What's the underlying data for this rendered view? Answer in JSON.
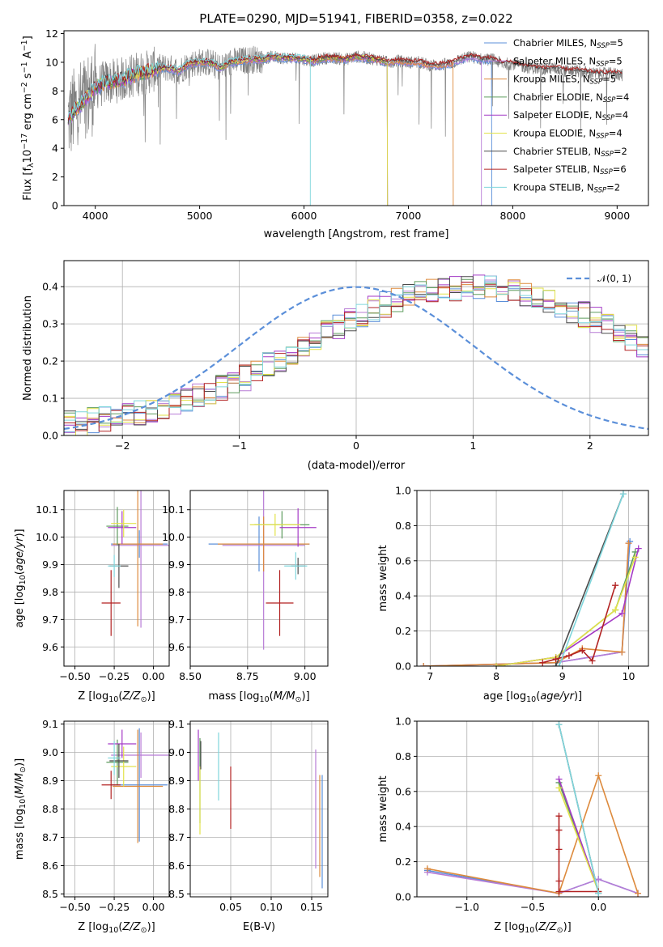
{
  "figure": {
    "title": "PLATE=0290, MJD=51941, FIBERID=0358, z=0.022"
  },
  "models": [
    {
      "name": "Chabrier MILES, N",
      "sub": "SSP",
      "eq": "=5",
      "color": "#5b8fd9"
    },
    {
      "name": "Salpeter MILES, N",
      "sub": "SSP",
      "eq": "=5",
      "color": "#b77cd6"
    },
    {
      "name": "Kroupa MILES, N",
      "sub": "SSP",
      "eq": "=5",
      "color": "#dd8a3c"
    },
    {
      "name": "Chabrier ELODIE, N",
      "sub": "SSP",
      "eq": "=4",
      "color": "#5e9c5e"
    },
    {
      "name": "Salpeter ELODIE, N",
      "sub": "SSP",
      "eq": "=4",
      "color": "#a43ac6"
    },
    {
      "name": "Kroupa ELODIE, N",
      "sub": "SSP",
      "eq": "=4",
      "color": "#e2e24a"
    },
    {
      "name": "Chabrier STELIB, N",
      "sub": "SSP",
      "eq": "=2",
      "color": "#4a4a4a"
    },
    {
      "name": "Salpeter STELIB, N",
      "sub": "SSP",
      "eq": "=6",
      "color": "#b22222"
    },
    {
      "name": "Kroupa STELIB, N",
      "sub": "SSP",
      "eq": "=2",
      "color": "#7fd6dc"
    }
  ],
  "chart_data": [
    {
      "type": "line",
      "id": "spectrum",
      "title": "PLATE=0290, MJD=51941, FIBERID=0358, z=0.022",
      "xlabel": "wavelength [Angstrom, rest frame]",
      "ylabel_parts": [
        "Flux [f",
        "λ",
        "10",
        "−17",
        " erg cm",
        "−2",
        " s",
        "−1",
        " A",
        "−1",
        "]"
      ],
      "xlim": [
        3700,
        9300
      ],
      "ylim": [
        0,
        12.2
      ],
      "xticks": [
        4000,
        5000,
        6000,
        7000,
        8000,
        9000
      ],
      "yticks": [
        0,
        2,
        4,
        6,
        8,
        10,
        12
      ],
      "data_color": "#808080",
      "continuum": [
        [
          3740,
          6.0
        ],
        [
          3800,
          6.6
        ],
        [
          3850,
          7.0
        ],
        [
          3900,
          7.4
        ],
        [
          3950,
          7.8
        ],
        [
          4000,
          8.2
        ],
        [
          4100,
          8.6
        ],
        [
          4200,
          8.7
        ],
        [
          4300,
          8.9
        ],
        [
          4400,
          9.2
        ],
        [
          4500,
          9.3
        ],
        [
          4600,
          9.6
        ],
        [
          4700,
          9.6
        ],
        [
          4800,
          9.4
        ],
        [
          4900,
          9.9
        ],
        [
          5000,
          10.0
        ],
        [
          5100,
          10.0
        ],
        [
          5200,
          9.6
        ],
        [
          5300,
          10.0
        ],
        [
          5400,
          10.1
        ],
        [
          5500,
          10.2
        ],
        [
          5600,
          10.2
        ],
        [
          5700,
          10.4
        ],
        [
          5800,
          10.3
        ],
        [
          5900,
          10.3
        ],
        [
          6000,
          10.2
        ],
        [
          6100,
          10.1
        ],
        [
          6200,
          10.3
        ],
        [
          6300,
          10.3
        ],
        [
          6400,
          10.2
        ],
        [
          6500,
          10.4
        ],
        [
          6600,
          10.3
        ],
        [
          6700,
          10.2
        ],
        [
          6800,
          10.0
        ],
        [
          6900,
          10.1
        ],
        [
          7000,
          10.0
        ],
        [
          7100,
          10.0
        ],
        [
          7200,
          9.8
        ],
        [
          7300,
          9.8
        ],
        [
          7400,
          9.9
        ],
        [
          7500,
          10.2
        ],
        [
          7600,
          10.4
        ],
        [
          7700,
          10.2
        ],
        [
          7800,
          10.2
        ],
        [
          7900,
          9.9
        ],
        [
          8000,
          9.9
        ],
        [
          8100,
          9.7
        ],
        [
          8200,
          9.6
        ],
        [
          8300,
          9.5
        ],
        [
          8400,
          9.6
        ],
        [
          8500,
          9.4
        ],
        [
          8600,
          9.4
        ],
        [
          8700,
          9.3
        ],
        [
          8800,
          9.2
        ],
        [
          8900,
          9.2
        ],
        [
          9000,
          9.2
        ],
        [
          9050,
          9.1
        ]
      ],
      "model_end_x": [
        7800,
        7700,
        7430,
        6800,
        6800,
        6800,
        9050,
        9050,
        6060
      ],
      "legend": "upper right"
    },
    {
      "type": "step",
      "id": "residuals",
      "xlabel": "(data-model)/error",
      "ylabel": "Normed distribution",
      "xlim": [
        -2.5,
        2.5
      ],
      "ylim": [
        0,
        0.47
      ],
      "xticks": [
        -2,
        -1,
        0,
        1,
        2
      ],
      "yticks": [
        0.0,
        0.1,
        0.2,
        0.3,
        0.4
      ],
      "bin_width": 0.1,
      "hist": [
        0.035,
        0.03,
        0.04,
        0.045,
        0.05,
        0.055,
        0.062,
        0.07,
        0.078,
        0.088,
        0.095,
        0.105,
        0.118,
        0.128,
        0.142,
        0.155,
        0.172,
        0.188,
        0.205,
        0.222,
        0.24,
        0.258,
        0.275,
        0.29,
        0.31,
        0.325,
        0.34,
        0.352,
        0.362,
        0.372,
        0.38,
        0.386,
        0.392,
        0.395,
        0.396,
        0.398,
        0.395,
        0.392,
        0.388,
        0.38,
        0.372,
        0.362,
        0.35,
        0.338,
        0.325,
        0.31,
        0.295,
        0.278,
        0.262,
        0.245
      ],
      "gauss_label": "𝒩(0, 1)",
      "gauss_color": "#5b8fd9",
      "legend": "upper right"
    },
    {
      "type": "errorbar",
      "id": "age-vs-Z",
      "xlabel": "Z [log10(Z/Z⊙)]",
      "ylabel": "age  [log10(age/yr)]",
      "xlim": [
        -0.57,
        0.1
      ],
      "ylim": [
        9.53,
        10.17
      ],
      "xticks": [
        -0.5,
        -0.25,
        0.0
      ],
      "yticks": [
        9.6,
        9.7,
        9.8,
        9.9,
        10.0,
        10.1
      ],
      "points": [
        {
          "m": 0,
          "x": -0.09,
          "y": 9.975,
          "xe": 0.18,
          "ye": 0.05
        },
        {
          "m": 1,
          "x": -0.08,
          "y": 9.97,
          "xe": 0.19,
          "ye": 0.3
        },
        {
          "m": 2,
          "x": -0.1,
          "y": 9.975,
          "xe": 0.16,
          "ye": 0.3
        },
        {
          "m": 3,
          "x": -0.23,
          "y": 10.04,
          "xe": 0.07,
          "ye": 0.07
        },
        {
          "m": 4,
          "x": -0.2,
          "y": 10.035,
          "xe": 0.09,
          "ye": 0.06
        },
        {
          "m": 5,
          "x": -0.19,
          "y": 10.05,
          "xe": 0.08,
          "ye": 0.05
        },
        {
          "m": 6,
          "x": -0.22,
          "y": 9.895,
          "xe": 0.06,
          "ye": 0.08
        },
        {
          "m": 7,
          "x": -0.27,
          "y": 9.76,
          "xe": 0.06,
          "ye": 0.12
        },
        {
          "m": 8,
          "x": -0.25,
          "y": 9.895,
          "xe": 0.04,
          "ye": 0.04
        }
      ]
    },
    {
      "type": "errorbar",
      "id": "age-vs-mass",
      "xlabel": "mass [log10(M/M⊙)]",
      "xlim": [
        8.5,
        9.1
      ],
      "ylim": [
        9.53,
        10.17
      ],
      "xticks": [
        8.5,
        8.75,
        9.0
      ],
      "yticks": [
        9.6,
        9.7,
        9.8,
        9.9,
        10.0,
        10.1
      ],
      "points": [
        {
          "m": 0,
          "x": 8.8,
          "y": 9.975,
          "xe": 0.22,
          "ye": 0.1
        },
        {
          "m": 1,
          "x": 8.82,
          "y": 9.97,
          "xe": 0.18,
          "ye": 0.38
        },
        {
          "m": 2,
          "x": 8.82,
          "y": 9.975,
          "xe": 0.2,
          "ye": 0.1
        },
        {
          "m": 3,
          "x": 8.9,
          "y": 10.045,
          "xe": 0.12,
          "ye": 0.05
        },
        {
          "m": 4,
          "x": 8.97,
          "y": 10.035,
          "xe": 0.08,
          "ye": 0.07
        },
        {
          "m": 5,
          "x": 8.87,
          "y": 10.045,
          "xe": 0.11,
          "ye": 0.04
        },
        {
          "m": 6,
          "x": 8.97,
          "y": 9.895,
          "xe": 0.03,
          "ye": 0.03
        },
        {
          "m": 7,
          "x": 8.89,
          "y": 9.76,
          "xe": 0.06,
          "ye": 0.12
        },
        {
          "m": 8,
          "x": 8.96,
          "y": 9.895,
          "xe": 0.05,
          "ye": 0.05
        }
      ]
    },
    {
      "type": "line",
      "id": "mass-weight-vs-age",
      "xlabel": "age  [log10(age/yr)]",
      "ylabel": "mass weight",
      "xlim": [
        6.8,
        10.3
      ],
      "ylim": [
        0,
        1.0
      ],
      "xticks": [
        7,
        8,
        9,
        10
      ],
      "yticks": [
        0.0,
        0.2,
        0.4,
        0.6,
        0.8,
        1.0
      ],
      "series": [
        {
          "m": 0,
          "x": [
            6.9,
            8.9,
            9.9,
            10.02
          ],
          "y": [
            0.0,
            0.02,
            0.08,
            0.71
          ]
        },
        {
          "m": 1,
          "x": [
            6.9,
            8.9,
            9.9,
            10.0
          ],
          "y": [
            0.0,
            0.02,
            0.08,
            0.7
          ]
        },
        {
          "m": 2,
          "x": [
            6.9,
            8.9,
            9.3,
            9.9,
            10.0
          ],
          "y": [
            0.0,
            0.02,
            0.1,
            0.08,
            0.7
          ]
        },
        {
          "m": 3,
          "x": [
            8.0,
            8.9,
            9.8,
            10.1
          ],
          "y": [
            0.0,
            0.05,
            0.32,
            0.65
          ]
        },
        {
          "m": 4,
          "x": [
            8.0,
            8.9,
            9.9,
            10.15
          ],
          "y": [
            0.0,
            0.05,
            0.3,
            0.67
          ]
        },
        {
          "m": 5,
          "x": [
            8.0,
            8.9,
            9.8,
            10.1
          ],
          "y": [
            0.0,
            0.05,
            0.32,
            0.62
          ]
        },
        {
          "m": 6,
          "x": [
            8.9,
            9.92
          ],
          "y": [
            0.0,
            0.98
          ]
        },
        {
          "m": 7,
          "x": [
            8.7,
            8.9,
            9.1,
            9.3,
            9.45,
            9.8
          ],
          "y": [
            0.02,
            0.04,
            0.06,
            0.09,
            0.03,
            0.46
          ]
        },
        {
          "m": 8,
          "x": [
            8.95,
            9.92
          ],
          "y": [
            0.0,
            0.98
          ]
        }
      ]
    },
    {
      "type": "errorbar",
      "id": "mass-vs-Z",
      "xlabel": "Z [log10(Z/Z⊙)]",
      "ylabel": "mass [log10(M/M⊙)]",
      "xlim": [
        -0.57,
        0.1
      ],
      "ylim": [
        8.49,
        9.11
      ],
      "xticks": [
        -0.5,
        -0.25,
        0.0
      ],
      "yticks": [
        8.5,
        8.6,
        8.7,
        8.8,
        8.9,
        9.0,
        9.1
      ],
      "points": [
        {
          "m": 0,
          "x": -0.09,
          "y": 8.885,
          "xe": 0.18,
          "ye": 0.2
        },
        {
          "m": 1,
          "x": -0.08,
          "y": 8.99,
          "xe": 0.19,
          "ye": 0.08
        },
        {
          "m": 2,
          "x": -0.1,
          "y": 8.88,
          "xe": 0.16,
          "ye": 0.2
        },
        {
          "m": 3,
          "x": -0.23,
          "y": 8.965,
          "xe": 0.07,
          "ye": 0.08
        },
        {
          "m": 4,
          "x": -0.2,
          "y": 9.03,
          "xe": 0.09,
          "ye": 0.05
        },
        {
          "m": 5,
          "x": -0.19,
          "y": 8.95,
          "xe": 0.08,
          "ye": 0.07
        },
        {
          "m": 6,
          "x": -0.22,
          "y": 8.97,
          "xe": 0.06,
          "ye": 0.06
        },
        {
          "m": 7,
          "x": -0.27,
          "y": 8.885,
          "xe": 0.06,
          "ye": 0.05
        },
        {
          "m": 8,
          "x": -0.25,
          "y": 8.98,
          "xe": 0.04,
          "ye": 0.06
        }
      ]
    },
    {
      "type": "errorbar",
      "id": "mass-vs-EBV",
      "xlabel": "E(B-V)",
      "xlim": [
        0.0,
        0.17
      ],
      "ylim": [
        8.49,
        9.11
      ],
      "xticks": [
        0.05,
        0.1,
        0.15
      ],
      "yticks": [
        8.5,
        8.6,
        8.7,
        8.8,
        8.9,
        9.0,
        9.1
      ],
      "points": [
        {
          "m": 0,
          "x": 0.163,
          "y": 8.72,
          "ye": 0.2
        },
        {
          "m": 1,
          "x": 0.155,
          "y": 8.8,
          "ye": 0.21
        },
        {
          "m": 2,
          "x": 0.16,
          "y": 8.74,
          "ye": 0.18
        },
        {
          "m": 3,
          "x": 0.012,
          "y": 8.9,
          "ye": 0.15
        },
        {
          "m": 4,
          "x": 0.01,
          "y": 8.99,
          "ye": 0.09
        },
        {
          "m": 5,
          "x": 0.012,
          "y": 8.83,
          "ye": 0.12
        },
        {
          "m": 6,
          "x": 0.013,
          "y": 8.99,
          "ye": 0.05
        },
        {
          "m": 7,
          "x": 0.05,
          "y": 8.84,
          "ye": 0.11
        },
        {
          "m": 8,
          "x": 0.035,
          "y": 8.95,
          "ye": 0.12
        }
      ]
    },
    {
      "type": "line",
      "id": "mass-weight-vs-Z",
      "xlabel": "Z [log10(Z/Z⊙)]",
      "ylabel": "mass weight",
      "xlim": [
        -1.38,
        0.38
      ],
      "ylim": [
        0,
        1.0
      ],
      "xticks": [
        -1.0,
        -0.5,
        0.0
      ],
      "yticks": [
        0.0,
        0.2,
        0.4,
        0.6,
        0.8,
        1.0
      ],
      "series": [
        {
          "m": 0,
          "x": [
            -1.3,
            -0.3,
            0.0,
            0.3
          ],
          "y": [
            0.15,
            0.02,
            0.1,
            0.02
          ]
        },
        {
          "m": 1,
          "x": [
            -1.3,
            -0.3,
            0.0,
            0.3
          ],
          "y": [
            0.14,
            0.02,
            0.1,
            0.02
          ]
        },
        {
          "m": 2,
          "x": [
            -1.3,
            -0.3,
            0.0,
            0.3
          ],
          "y": [
            0.16,
            0.02,
            0.69,
            0.02
          ]
        },
        {
          "m": 3,
          "x": [
            -0.3,
            0.0
          ],
          "y": [
            0.65,
            0.03
          ]
        },
        {
          "m": 4,
          "x": [
            -0.3,
            0.0
          ],
          "y": [
            0.67,
            0.03
          ]
        },
        {
          "m": 5,
          "x": [
            -0.3,
            0.0
          ],
          "y": [
            0.62,
            0.03
          ]
        },
        {
          "m": 6,
          "x": [
            -0.3,
            0.0
          ],
          "y": [
            0.98,
            0.02
          ]
        },
        {
          "m": 7,
          "x": [
            -0.3,
            -0.3,
            -0.3,
            -0.3,
            -0.3,
            0.0
          ],
          "y": [
            0.46,
            0.38,
            0.27,
            0.09,
            0.03,
            0.03
          ]
        },
        {
          "m": 8,
          "x": [
            -0.3,
            0.0
          ],
          "y": [
            0.98,
            0.02
          ]
        }
      ]
    }
  ]
}
